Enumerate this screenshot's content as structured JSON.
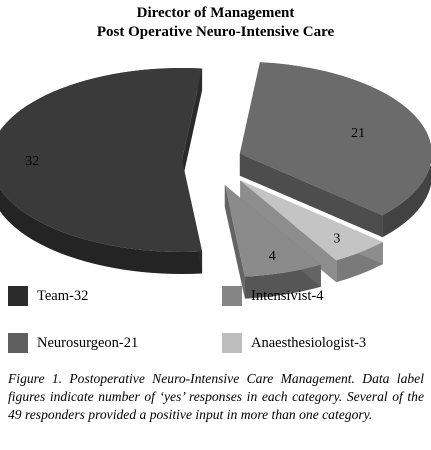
{
  "chart_data": {
    "type": "pie",
    "title": "Director of Management",
    "subtitle": "Post Operative Neuro-Intensive Care",
    "categories": [
      "Team-32",
      "Neurosurgeon-21",
      "Anaesthesiologist-3",
      "Intensivist-4"
    ],
    "values": [
      32,
      21,
      3,
      4
    ],
    "data_labels": [
      "32",
      "21",
      "3",
      "4"
    ],
    "colors": [
      "#3a3a3a",
      "#6b6b6b",
      "#c4c4c4",
      "#8b8b8b"
    ],
    "exploded": true,
    "style": "3d",
    "legend_placement": "bottom",
    "legend": [
      {
        "label": "Team-32",
        "color": "#2b2b2b"
      },
      {
        "label": "Intensivist-4",
        "color": "#858585"
      },
      {
        "label": "Neurosurgeon-21",
        "color": "#5f5f5f"
      },
      {
        "label": "Anaesthesiologist-3",
        "color": "#bdbdbd"
      }
    ]
  },
  "caption": "Figure 1. Postoperative Neuro-Intensive Care Management. Data label figures indicate number of ‘yes’ responses in each category. Several of the 49 responders provided a positive input in more than one category."
}
